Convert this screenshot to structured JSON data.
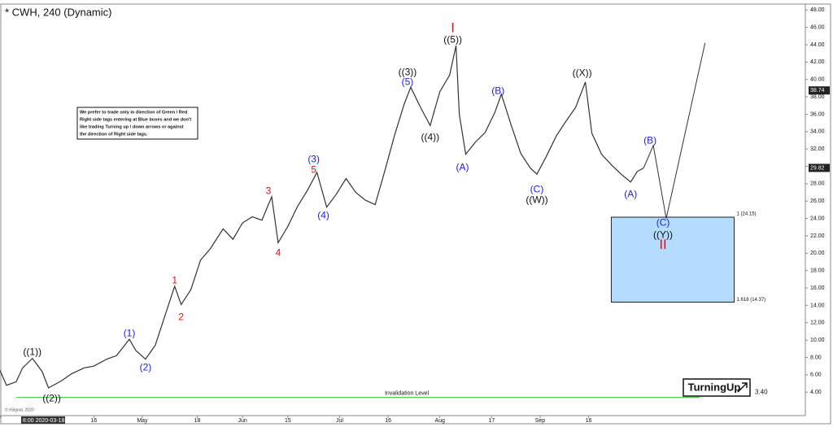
{
  "chart_data": {
    "type": "line",
    "title": "* CWH, 240 (Dynamic)",
    "xlim": [
      "2020-03-18",
      "2020-11-22"
    ],
    "ylim": [
      1.4,
      48.4
    ],
    "xticks": [
      {
        "value": "2020-03-18",
        "label": "8:00 2020-03-18"
      },
      {
        "value": "2020-04-16",
        "label": "16"
      },
      {
        "value": "2020-05-01",
        "label": "May"
      },
      {
        "value": "2020-05-18",
        "label": "18"
      },
      {
        "value": "2020-06-01",
        "label": "Jun"
      },
      {
        "value": "2020-06-15",
        "label": "15"
      },
      {
        "value": "2020-07-01",
        "label": "Jul"
      },
      {
        "value": "2020-07-16",
        "label": "16"
      },
      {
        "value": "2020-08-01",
        "label": "Aug"
      },
      {
        "value": "2020-08-17",
        "label": "17"
      },
      {
        "value": "2020-09-01",
        "label": "Sep"
      },
      {
        "value": "2020-09-16",
        "label": "16"
      }
    ],
    "yticks": [
      {
        "value": 4,
        "label": "4.00"
      },
      {
        "value": 6,
        "label": "6.00"
      },
      {
        "value": 8,
        "label": "8.00"
      },
      {
        "value": 10,
        "label": "10.00"
      },
      {
        "value": 12,
        "label": "12.00"
      },
      {
        "value": 14,
        "label": "14.00"
      },
      {
        "value": 16,
        "label": "16.00"
      },
      {
        "value": 18,
        "label": "18.00"
      },
      {
        "value": 20,
        "label": "20.00"
      },
      {
        "value": 22,
        "label": "22.00"
      },
      {
        "value": 24,
        "label": "24.00"
      },
      {
        "value": 26,
        "label": "26.00"
      },
      {
        "value": 28,
        "label": "28.00"
      },
      {
        "value": 30,
        "label": "30.00"
      },
      {
        "value": 32,
        "label": "32.00"
      },
      {
        "value": 34,
        "label": "34.00"
      },
      {
        "value": 36,
        "label": "36.00"
      },
      {
        "value": 38,
        "label": "38.00"
      },
      {
        "value": 40,
        "label": "40.00"
      },
      {
        "value": 42,
        "label": "42.00"
      },
      {
        "value": 44,
        "label": "44.00"
      },
      {
        "value": 46,
        "label": "46.00"
      },
      {
        "value": 48,
        "label": "48.00"
      }
    ],
    "series": [
      {
        "name": "CWH",
        "color": "#333333",
        "x": [
          "2020-03-18",
          "2020-03-20",
          "2020-03-23",
          "2020-03-25",
          "2020-03-28",
          "2020-03-31",
          "2020-04-02",
          "2020-04-06",
          "2020-04-09",
          "2020-04-13",
          "2020-04-16",
          "2020-04-20",
          "2020-04-23",
          "2020-04-27",
          "2020-04-29",
          "2020-05-02",
          "2020-05-05",
          "2020-05-08",
          "2020-05-11",
          "2020-05-13",
          "2020-05-16",
          "2020-05-19",
          "2020-05-22",
          "2020-05-26",
          "2020-05-29",
          "2020-06-01",
          "2020-06-04",
          "2020-06-07",
          "2020-06-10",
          "2020-06-12",
          "2020-06-15",
          "2020-06-18",
          "2020-06-21",
          "2020-06-24",
          "2020-06-27",
          "2020-06-30",
          "2020-07-03",
          "2020-07-06",
          "2020-07-09",
          "2020-07-12",
          "2020-07-15",
          "2020-07-18",
          "2020-07-21",
          "2020-07-23",
          "2020-07-26",
          "2020-07-29",
          "2020-08-01",
          "2020-08-04",
          "2020-08-06",
          "2020-08-07",
          "2020-08-09",
          "2020-08-12",
          "2020-08-15",
          "2020-08-18",
          "2020-08-20",
          "2020-08-23",
          "2020-08-26",
          "2020-08-29",
          "2020-08-31",
          "2020-09-03",
          "2020-09-06",
          "2020-09-09",
          "2020-09-12",
          "2020-09-15",
          "2020-09-17",
          "2020-09-20",
          "2020-09-23",
          "2020-09-26",
          "2020-09-29",
          "2020-10-01",
          "2020-10-03"
        ],
        "values": [
          6.5,
          4.8,
          5.2,
          6.8,
          7.9,
          6.4,
          4.5,
          5.3,
          6.1,
          6.8,
          7.0,
          7.8,
          8.2,
          10.1,
          8.8,
          7.8,
          9.4,
          12.8,
          16.2,
          14.1,
          15.8,
          19.2,
          20.5,
          22.8,
          21.6,
          23.5,
          24.2,
          23.8,
          26.5,
          21.2,
          23.1,
          25.4,
          27.2,
          29.3,
          25.3,
          26.8,
          28.6,
          27.0,
          26.1,
          25.6,
          29.5,
          33.6,
          37.2,
          39.1,
          36.8,
          34.7,
          38.6,
          40.5,
          43.9,
          36.0,
          31.4,
          32.8,
          33.9,
          36.2,
          38.3,
          34.8,
          31.5,
          29.8,
          29.1,
          31.2,
          33.5,
          35.2,
          36.8,
          39.7,
          33.8,
          31.4,
          30.2,
          29.1,
          28.2,
          29.4,
          29.82
        ]
      }
    ],
    "projection": {
      "color": "#333333",
      "x": [
        "2020-10-03",
        "2020-10-06",
        "2020-10-10",
        "2020-10-22"
      ],
      "values": [
        29.82,
        32.4,
        24.0,
        44.2
      ]
    },
    "price_markers": [
      38.74,
      29.82
    ],
    "target_box": {
      "color": "#b3dcff",
      "x0": "2020-09-23",
      "x1": "2020-10-31",
      "top": {
        "value": 24.15,
        "label": "1 (24.15)"
      },
      "bottom": {
        "value": 14.37,
        "label": "1.618 (14.37)"
      }
    },
    "invalidation": {
      "label": "Invalidation Level",
      "value": 3.4,
      "value_label": "3.40",
      "color": "#33cc33"
    },
    "annotations": [
      {
        "text": "((1))",
        "color": "#111111",
        "x": "2020-03-28",
        "y": 8.58
      },
      {
        "text": "((2))",
        "color": "#111111",
        "x": "2020-04-03",
        "y": 3.24
      },
      {
        "text": "(1)",
        "color": "#1a1aff",
        "x": "2020-04-27",
        "y": 10.73
      },
      {
        "text": "(2)",
        "color": "#1a1aff",
        "x": "2020-05-02",
        "y": 6.8
      },
      {
        "text": "1",
        "color": "#e01010",
        "x": "2020-05-11",
        "y": 16.82
      },
      {
        "text": "2",
        "color": "#e01010",
        "x": "2020-05-13",
        "y": 12.61
      },
      {
        "text": "3",
        "color": "#e01010",
        "x": "2020-06-09",
        "y": 27.12
      },
      {
        "text": "4",
        "color": "#e01010",
        "x": "2020-06-12",
        "y": 20.0
      },
      {
        "text": "(3)",
        "color": "#1a1aff",
        "x": "2020-06-23",
        "y": 30.77
      },
      {
        "text": "5",
        "color": "#e01010",
        "x": "2020-06-23",
        "y": 29.55
      },
      {
        "text": "(4)",
        "color": "#1a1aff",
        "x": "2020-06-26",
        "y": 24.31
      },
      {
        "text": "((3))",
        "color": "#111111",
        "x": "2020-07-22",
        "y": 40.79
      },
      {
        "text": "(5)",
        "color": "#1a1aff",
        "x": "2020-07-22",
        "y": 39.67
      },
      {
        "text": "((4))",
        "color": "#111111",
        "x": "2020-07-29",
        "y": 33.3
      },
      {
        "text": "I",
        "color": "#e01010",
        "x": "2020-08-05",
        "y": 45.85
      },
      {
        "text": "((5))",
        "color": "#111111",
        "x": "2020-08-05",
        "y": 44.54
      },
      {
        "text": "(A)",
        "color": "#1a1aff",
        "x": "2020-08-08",
        "y": 29.84
      },
      {
        "text": "(B)",
        "color": "#1a1aff",
        "x": "2020-08-19",
        "y": 38.64
      },
      {
        "text": "(C)",
        "color": "#1a1aff",
        "x": "2020-08-31",
        "y": 27.31
      },
      {
        "text": "((W))",
        "color": "#111111",
        "x": "2020-08-31",
        "y": 26.09
      },
      {
        "text": "((X))",
        "color": "#111111",
        "x": "2020-09-14",
        "y": 40.7
      },
      {
        "text": "(A)",
        "color": "#1a1aff",
        "x": "2020-09-29",
        "y": 26.75
      },
      {
        "text": "(B)",
        "color": "#1a1aff",
        "x": "2020-10-05",
        "y": 32.93
      },
      {
        "text": "(C)",
        "color": "#1a1aff",
        "x": "2020-10-09",
        "y": 23.47
      },
      {
        "text": "((Y))",
        "color": "#111111",
        "x": "2020-10-09",
        "y": 22.06
      },
      {
        "text": "II",
        "color": "#e01010",
        "x": "2020-10-09",
        "y": 20.94
      }
    ],
    "note": [
      "We prefer to trade only in direction of Green / Red",
      "Right side tags entering at Blue boxes and we don't",
      "like trading Turning up / down arrows or against",
      "the direction of Right side tags."
    ],
    "logo": "TurningUp",
    "copyright": "© eSignal, 2020"
  }
}
